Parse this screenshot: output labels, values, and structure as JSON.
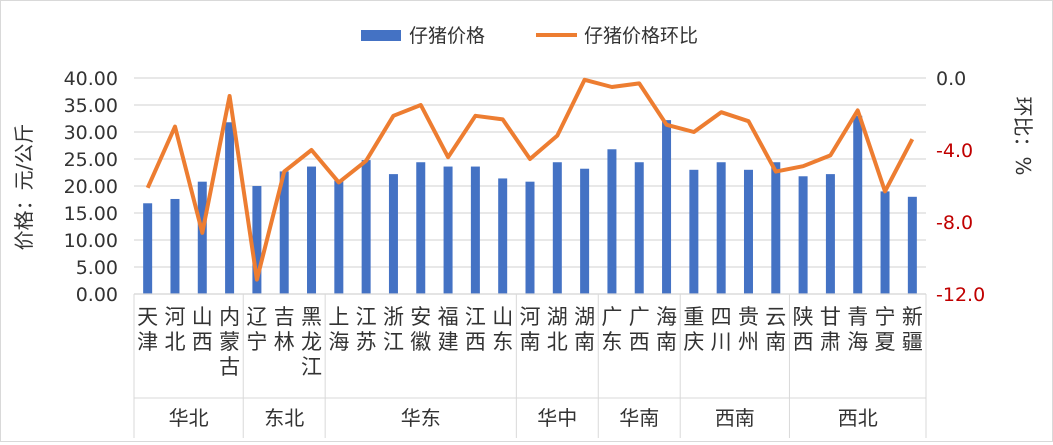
{
  "chart_data": {
    "type": "bar+line",
    "title": "",
    "legend": [
      {
        "name": "仔猪价格",
        "type": "bar",
        "color": "#4472C4"
      },
      {
        "name": "仔猪价格环比",
        "type": "line",
        "color": "#ED7D31"
      }
    ],
    "legend_position": "top",
    "ylabel_left": "价格：元/公斤",
    "ylabel_right": "环比：%",
    "ylim_left": [
      0,
      40
    ],
    "yticks_left": [
      "0.00",
      "5.00",
      "10.00",
      "15.00",
      "20.00",
      "25.00",
      "30.00",
      "35.00",
      "40.00"
    ],
    "ylim_right": [
      -12,
      0
    ],
    "yticks_right": [
      "0.0",
      "-4.0",
      "-8.0",
      "-12.0"
    ],
    "grid": true,
    "categories": [
      "天津",
      "河北",
      "山西",
      "内蒙古",
      "辽宁",
      "吉林",
      "黑龙江",
      "上海",
      "江苏",
      "浙江",
      "安徽",
      "福建",
      "江西",
      "山东",
      "河南",
      "湖北",
      "湖南",
      "广东",
      "广西",
      "海南",
      "重庆",
      "四川",
      "贵州",
      "云南",
      "陕西",
      "甘肃",
      "青海",
      "宁夏",
      "新疆"
    ],
    "groups": [
      {
        "name": "华北",
        "count": 4
      },
      {
        "name": "东北",
        "count": 3
      },
      {
        "name": "华东",
        "count": 7
      },
      {
        "name": "华中",
        "count": 3
      },
      {
        "name": "华南",
        "count": 3
      },
      {
        "name": "西南",
        "count": 4
      },
      {
        "name": "西北",
        "count": 5
      }
    ],
    "series": [
      {
        "name": "仔猪价格",
        "axis": "left",
        "values": [
          16.8,
          17.6,
          20.8,
          31.8,
          20.0,
          22.7,
          23.6,
          21.0,
          24.8,
          22.2,
          24.4,
          23.6,
          23.6,
          21.4,
          20.8,
          24.4,
          23.2,
          26.8,
          24.4,
          32.2,
          23.0,
          24.4,
          23.0,
          24.4,
          21.8,
          22.2,
          33.0,
          19.0,
          18.0
        ]
      },
      {
        "name": "仔猪价格环比",
        "axis": "right",
        "values": [
          -6.1,
          -2.7,
          -8.6,
          -1.0,
          -11.2,
          -5.2,
          -4.0,
          -5.8,
          -4.6,
          -2.1,
          -1.5,
          -4.4,
          -2.1,
          -2.3,
          -4.5,
          -3.2,
          -0.1,
          -0.5,
          -0.3,
          -2.6,
          -3.0,
          -1.9,
          -2.4,
          -5.2,
          -4.9,
          -4.3,
          -1.8,
          -6.3,
          -3.4
        ]
      }
    ]
  }
}
